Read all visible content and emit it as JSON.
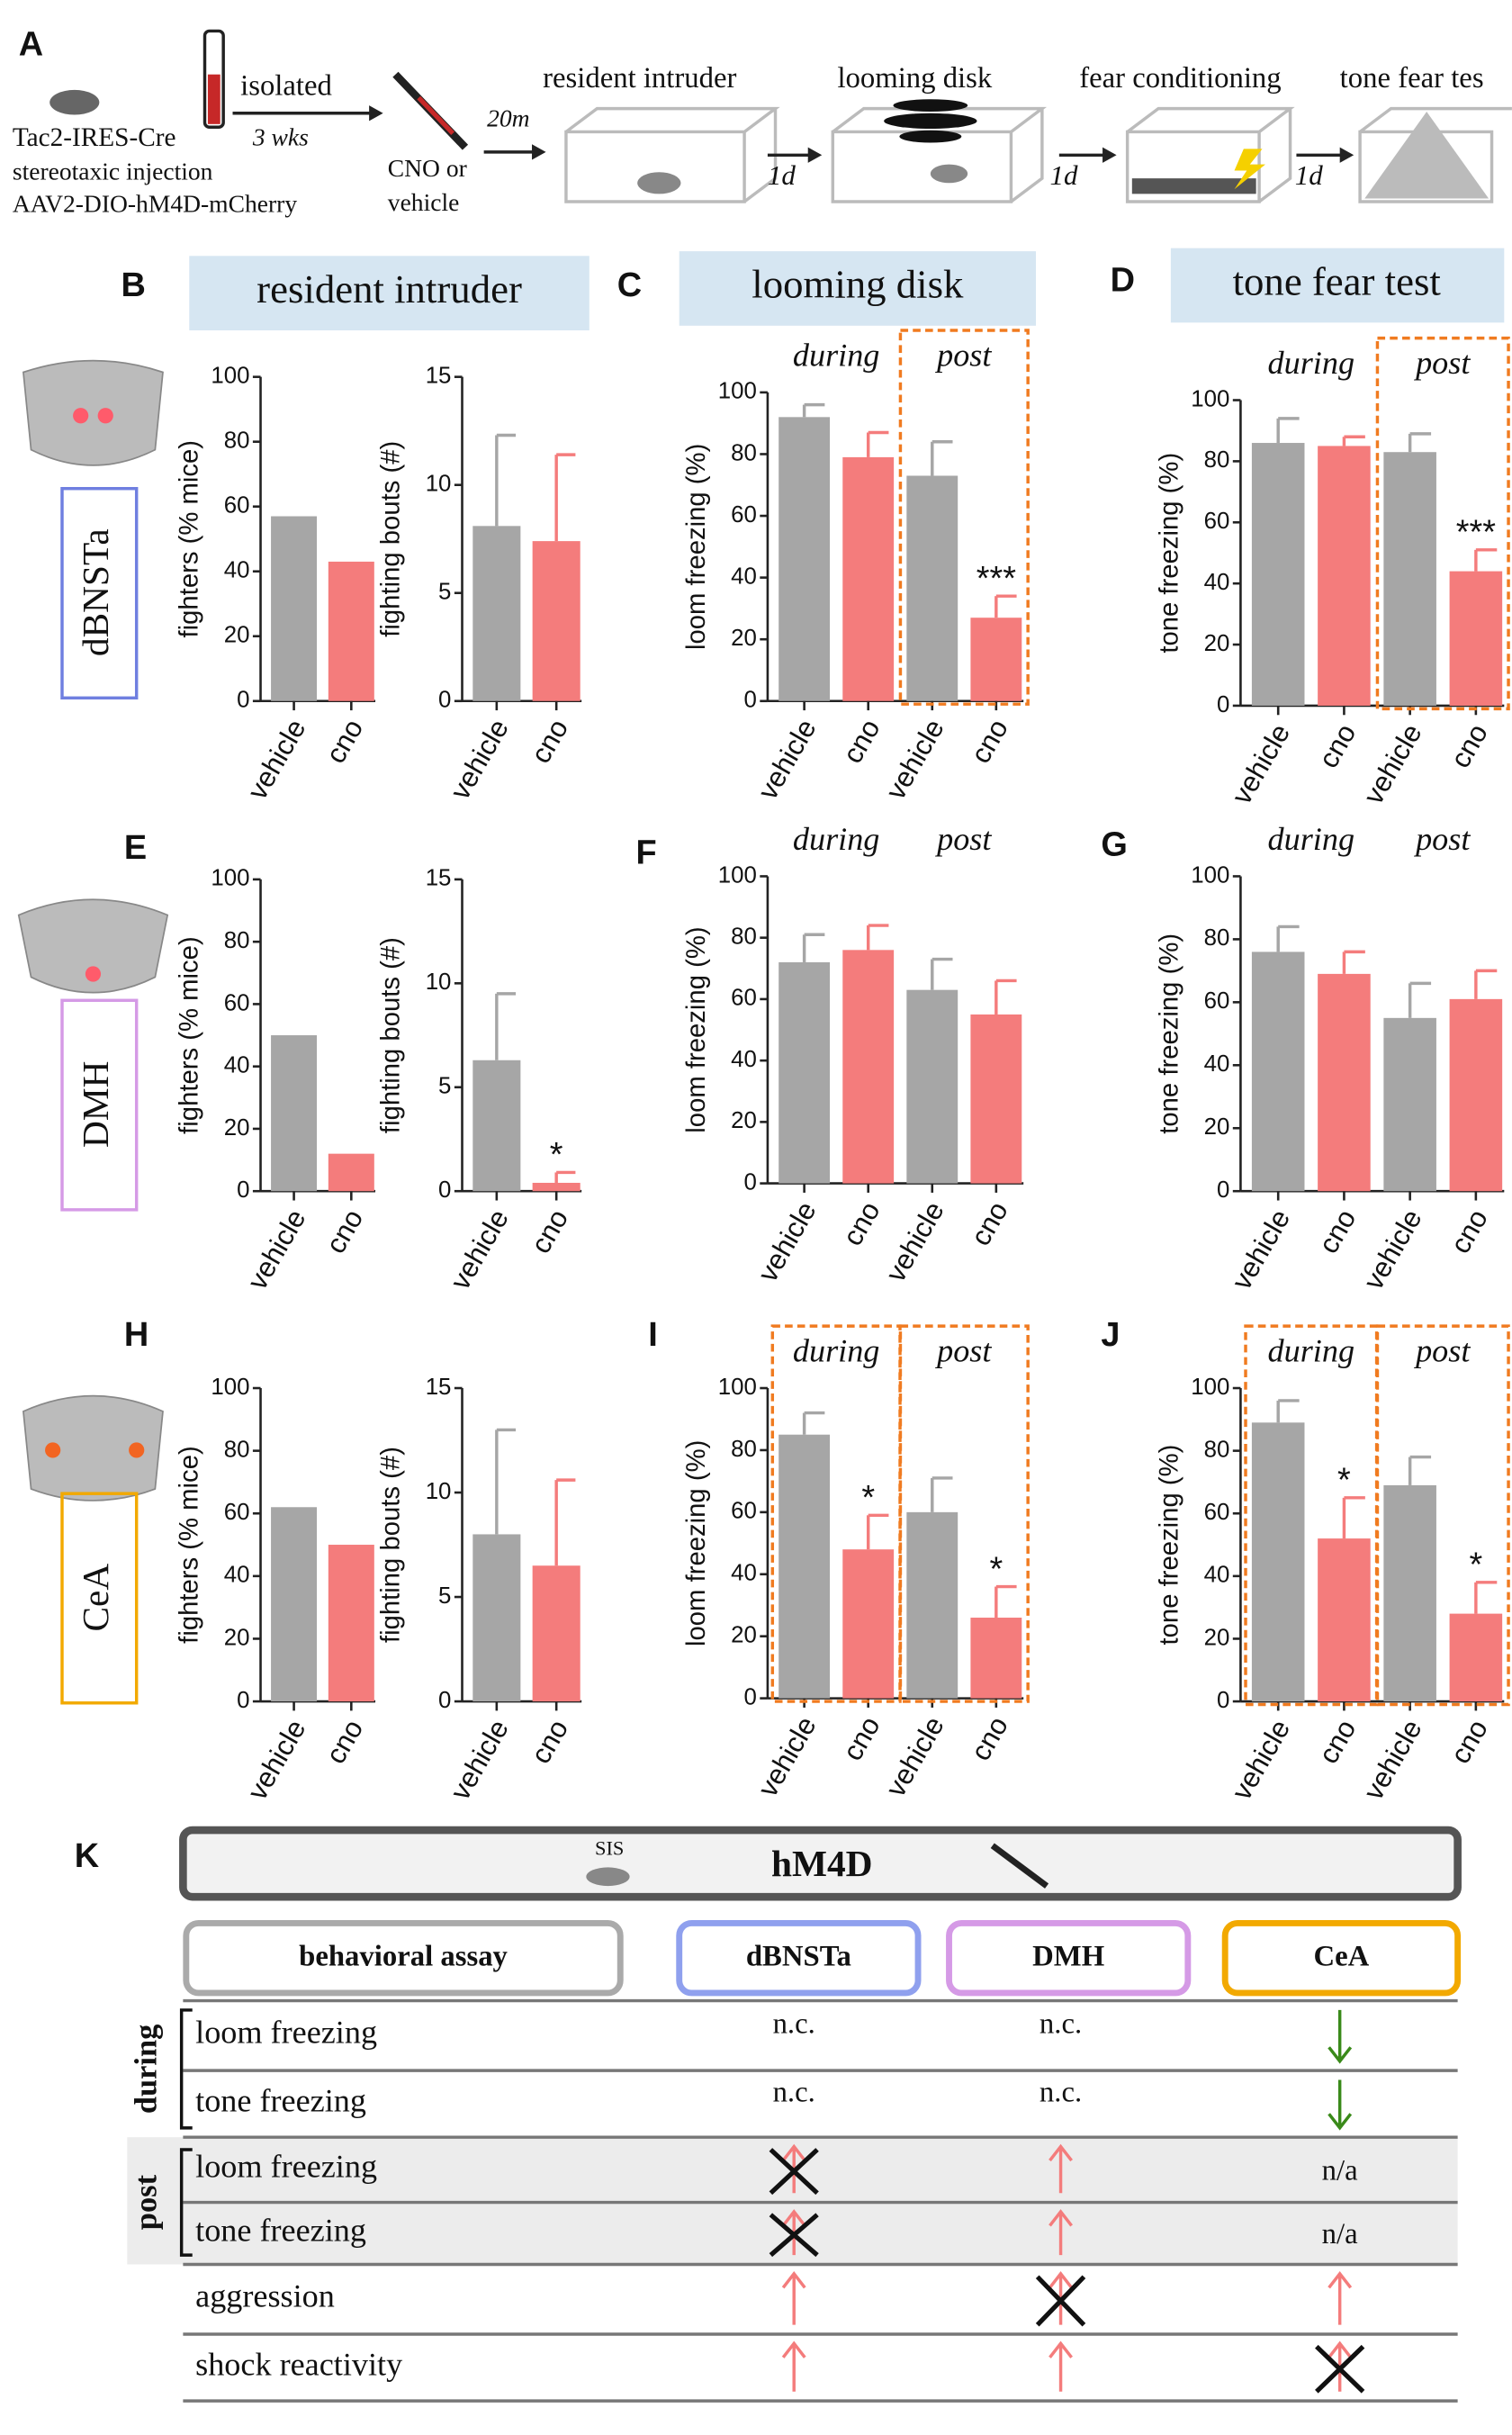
{
  "panels": [
    "A",
    "B",
    "C",
    "D",
    "E",
    "F",
    "G",
    "H",
    "I",
    "J",
    "K"
  ],
  "diagram": {
    "strain": "Tac2-IRES-Cre",
    "procedure": "stereotaxic injection",
    "virus": "AAV2-DIO-hM4D-mCherry",
    "housing": "isolated",
    "housing_time": "3 wks",
    "drug_1": "CNO or",
    "drug_2": "vehicle",
    "delay": "20m",
    "steps": [
      "resident intruder",
      "looming disk",
      "fear conditioning",
      "tone fear tes"
    ],
    "interval": "1d"
  },
  "headers": [
    "resident intruder",
    "looming disk",
    "tone fear test"
  ],
  "regions": [
    "dBNSTa",
    "DMH",
    "CeA"
  ],
  "chart_data": [
    {
      "type": "bar",
      "ylabel": "fighters (% mice)",
      "categories": [
        "vehicle",
        "cno"
      ],
      "values": [
        57,
        43
      ],
      "colors": [
        "#a6a6a6",
        "#f47c7c"
      ],
      "ylim": [
        0,
        100
      ],
      "yticks": [
        0,
        20,
        40,
        60,
        80,
        100
      ]
    },
    {
      "type": "bar",
      "ylabel": "fighting bouts (#)",
      "categories": [
        "vehicle",
        "cno"
      ],
      "values": [
        8.1,
        7.4
      ],
      "errors": [
        4.2,
        4.0
      ],
      "colors": [
        "#a6a6a6",
        "#f47c7c"
      ],
      "ylim": [
        0,
        15
      ],
      "yticks": [
        0,
        5,
        10,
        15
      ]
    },
    {
      "type": "bar",
      "ylabel": "loom freezing (%)",
      "categories": [
        "vehicle",
        "cno",
        "vehicle",
        "cno"
      ],
      "values": [
        92,
        79,
        73,
        27
      ],
      "errors": [
        4,
        8,
        11,
        7
      ],
      "colors": [
        "#a6a6a6",
        "#f47c7c",
        "#a6a6a6",
        "#f47c7c"
      ],
      "ylim": [
        0,
        100
      ],
      "yticks": [
        0,
        20,
        40,
        60,
        80,
        100
      ],
      "significance": [
        null,
        null,
        null,
        "***"
      ],
      "groups": [
        {
          "label": "during",
          "boxed": false
        },
        {
          "label": "post",
          "boxed": true
        }
      ]
    },
    {
      "type": "bar",
      "ylabel": "tone freezing (%)",
      "categories": [
        "vehicle",
        "cno",
        "vehicle",
        "cno"
      ],
      "values": [
        86,
        85,
        83,
        44
      ],
      "errors": [
        8,
        3,
        6,
        7
      ],
      "colors": [
        "#a6a6a6",
        "#f47c7c",
        "#a6a6a6",
        "#f47c7c"
      ],
      "ylim": [
        0,
        100
      ],
      "yticks": [
        0,
        20,
        40,
        60,
        80,
        100
      ],
      "significance": [
        null,
        null,
        null,
        "***"
      ],
      "groups": [
        {
          "label": "during",
          "boxed": false
        },
        {
          "label": "post",
          "boxed": true
        }
      ]
    },
    {
      "type": "bar",
      "ylabel": "fighters (% mice)",
      "categories": [
        "vehicle",
        "cno"
      ],
      "values": [
        50,
        12
      ],
      "colors": [
        "#a6a6a6",
        "#f47c7c"
      ],
      "ylim": [
        0,
        100
      ],
      "yticks": [
        0,
        20,
        40,
        60,
        80,
        100
      ]
    },
    {
      "type": "bar",
      "ylabel": "fighting bouts (#)",
      "categories": [
        "vehicle",
        "cno"
      ],
      "values": [
        6.3,
        0.4
      ],
      "errors": [
        3.2,
        0.5
      ],
      "colors": [
        "#a6a6a6",
        "#f47c7c"
      ],
      "ylim": [
        0,
        15
      ],
      "yticks": [
        0,
        5,
        10,
        15
      ],
      "significance": [
        null,
        "*"
      ]
    },
    {
      "type": "bar",
      "ylabel": "loom freezing (%)",
      "categories": [
        "vehicle",
        "cno",
        "vehicle",
        "cno"
      ],
      "values": [
        72,
        76,
        63,
        55
      ],
      "errors": [
        9,
        8,
        10,
        11
      ],
      "colors": [
        "#a6a6a6",
        "#f47c7c",
        "#a6a6a6",
        "#f47c7c"
      ],
      "ylim": [
        0,
        100
      ],
      "yticks": [
        0,
        20,
        40,
        60,
        80,
        100
      ],
      "groups": [
        {
          "label": "during",
          "boxed": false
        },
        {
          "label": "post",
          "boxed": false
        }
      ]
    },
    {
      "type": "bar",
      "ylabel": "tone freezing (%)",
      "categories": [
        "vehicle",
        "cno",
        "vehicle",
        "cno"
      ],
      "values": [
        76,
        69,
        55,
        61
      ],
      "errors": [
        8,
        7,
        11,
        9
      ],
      "colors": [
        "#a6a6a6",
        "#f47c7c",
        "#a6a6a6",
        "#f47c7c"
      ],
      "ylim": [
        0,
        100
      ],
      "yticks": [
        0,
        20,
        40,
        60,
        80,
        100
      ],
      "groups": [
        {
          "label": "during",
          "boxed": false
        },
        {
          "label": "post",
          "boxed": false
        }
      ]
    },
    {
      "type": "bar",
      "ylabel": "fighters (% mice)",
      "categories": [
        "vehicle",
        "cno"
      ],
      "values": [
        62,
        50
      ],
      "colors": [
        "#a6a6a6",
        "#f47c7c"
      ],
      "ylim": [
        0,
        100
      ],
      "yticks": [
        0,
        20,
        40,
        60,
        80,
        100
      ]
    },
    {
      "type": "bar",
      "ylabel": "fighting bouts (#)",
      "categories": [
        "vehicle",
        "cno"
      ],
      "values": [
        8.0,
        6.5
      ],
      "errors": [
        5.0,
        4.1
      ],
      "colors": [
        "#a6a6a6",
        "#f47c7c"
      ],
      "ylim": [
        0,
        15
      ],
      "yticks": [
        0,
        5,
        10,
        15
      ]
    },
    {
      "type": "bar",
      "ylabel": "loom freezing (%)",
      "categories": [
        "vehicle",
        "cno",
        "vehicle",
        "cno"
      ],
      "values": [
        85,
        48,
        60,
        26
      ],
      "errors": [
        7,
        11,
        11,
        10
      ],
      "colors": [
        "#a6a6a6",
        "#f47c7c",
        "#a6a6a6",
        "#f47c7c"
      ],
      "ylim": [
        0,
        100
      ],
      "yticks": [
        0,
        20,
        40,
        60,
        80,
        100
      ],
      "significance": [
        null,
        "*",
        null,
        "*"
      ],
      "groups": [
        {
          "label": "during",
          "boxed": true
        },
        {
          "label": "post",
          "boxed": true
        }
      ]
    },
    {
      "type": "bar",
      "ylabel": "tone freezing (%)",
      "categories": [
        "vehicle",
        "cno",
        "vehicle",
        "cno"
      ],
      "values": [
        89,
        52,
        69,
        28
      ],
      "errors": [
        7,
        13,
        9,
        10
      ],
      "colors": [
        "#a6a6a6",
        "#f47c7c",
        "#a6a6a6",
        "#f47c7c"
      ],
      "ylim": [
        0,
        100
      ],
      "yticks": [
        0,
        20,
        40,
        60,
        80,
        100
      ],
      "significance": [
        null,
        "*",
        null,
        "*"
      ],
      "groups": [
        {
          "label": "during",
          "boxed": true
        },
        {
          "label": "post",
          "boxed": true
        }
      ]
    }
  ],
  "table": {
    "title": "hM4D",
    "icon_label": "SIS",
    "columns": [
      "behavioral assay",
      "dBNSTa",
      "DMH",
      "CeA"
    ],
    "groups": [
      "during",
      "post"
    ],
    "rows": [
      {
        "label": "loom freezing",
        "cells": [
          "n.c.",
          "n.c.",
          null
        ]
      },
      {
        "label": "tone freezing",
        "cells": [
          "n.c.",
          "n.c.",
          null
        ]
      },
      {
        "label": "loom freezing",
        "cells": [
          null,
          null,
          "n/a"
        ]
      },
      {
        "label": "tone freezing",
        "cells": [
          null,
          null,
          "n/a"
        ]
      },
      {
        "label": "aggression",
        "cells": [
          null,
          null,
          null
        ]
      },
      {
        "label": "shock reactivity",
        "cells": [
          null,
          null,
          null
        ]
      }
    ]
  }
}
